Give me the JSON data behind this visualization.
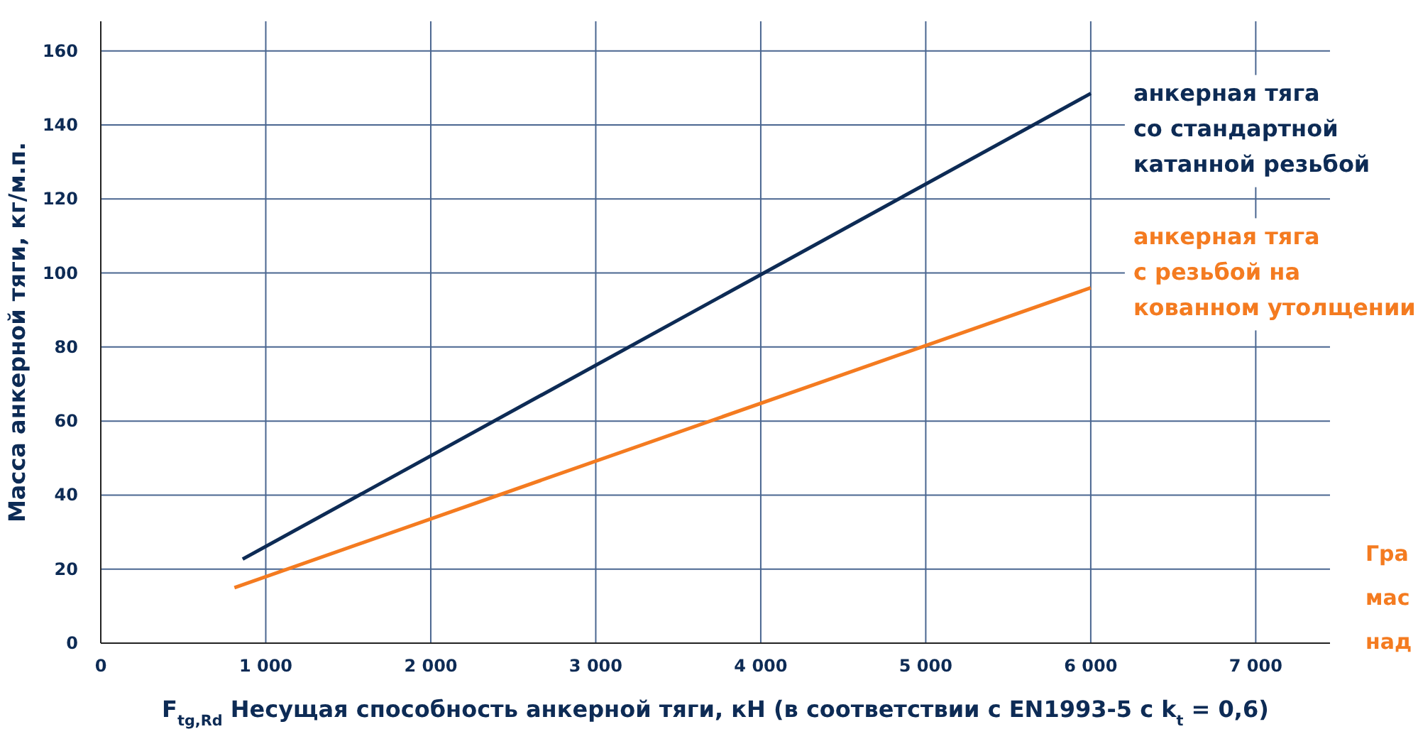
{
  "chart_data": {
    "type": "line",
    "xlabel": "F$_{tg,Rd}$ Несущая способность анкерной тяги, кН (в соответствии с EN1993-5 с k$_{t}$ = 0,6)",
    "ylabel": "Масса анкерной тяги, кг/м.п.",
    "series": [
      {
        "name": "анкерная тяга\nсо стандартной\nкатанной резьбой",
        "color": "#0d2b55",
        "x": [
          860,
          6000
        ],
        "values": [
          22.7,
          148.5
        ]
      },
      {
        "name": "анкерная тяга\nс резьбой на\nкованном утолщении",
        "color": "#f47b20",
        "x": [
          810,
          6000
        ],
        "values": [
          15,
          96
        ]
      }
    ],
    "xlim": [
      0,
      7450
    ],
    "ylim": [
      0,
      168
    ],
    "xticks": [
      0,
      {
        "value": 1000,
        "label": "1 000"
      },
      {
        "value": 2000,
        "label": "2 000"
      },
      {
        "value": 3000,
        "label": "3 000"
      },
      {
        "value": 4000,
        "label": "4 000"
      },
      {
        "value": 5000,
        "label": "5 000"
      },
      {
        "value": 6000,
        "label": "6 000"
      },
      {
        "value": 7000,
        "label": "7 000"
      }
    ],
    "yticks": [
      0,
      20,
      40,
      60,
      80,
      100,
      120,
      140,
      160
    ],
    "grid": true,
    "legend": false,
    "marker": "none",
    "line_style": "solid",
    "annotations": [
      "Гра",
      "мас",
      "над"
    ]
  }
}
